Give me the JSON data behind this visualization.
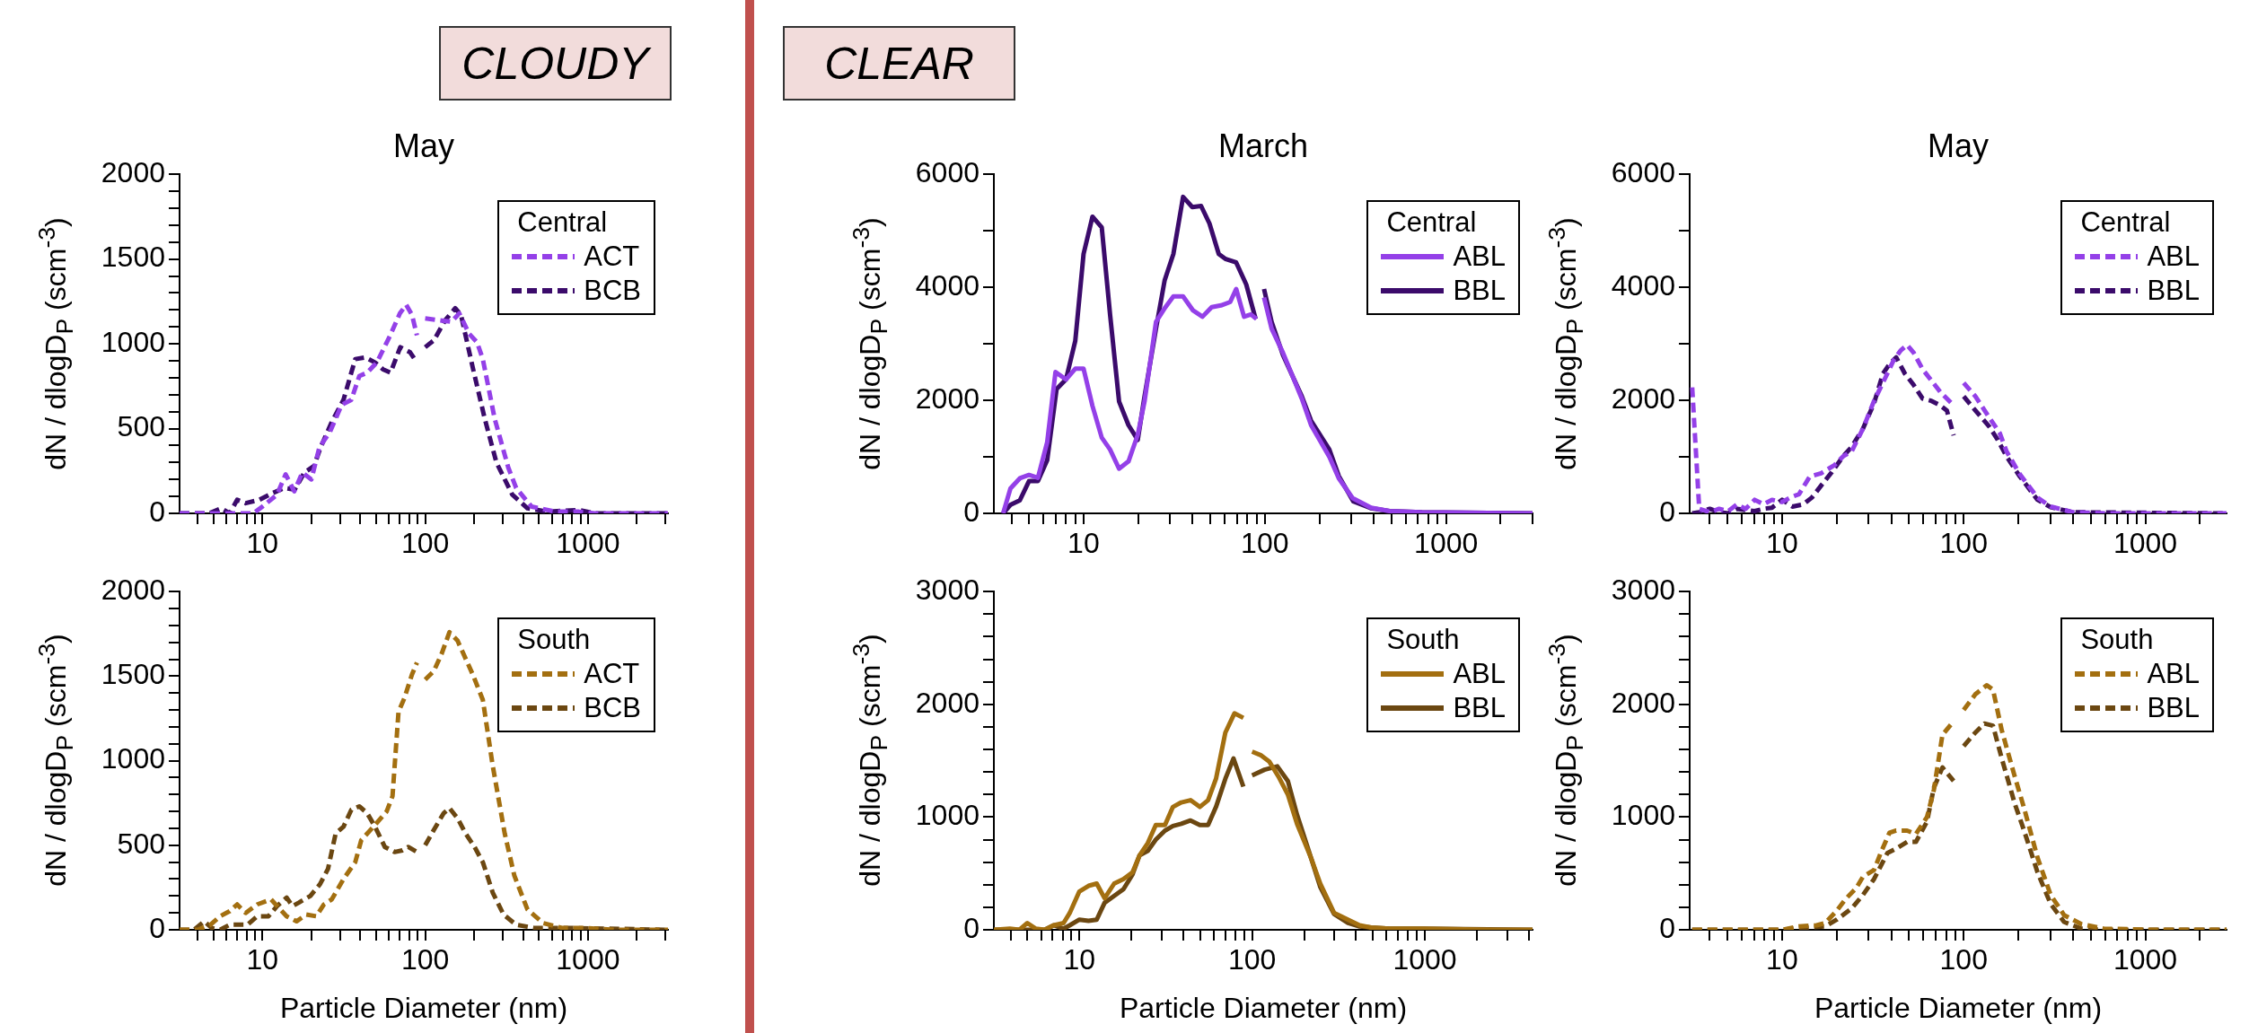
{
  "chart_data": [
    {
      "type": "line",
      "title": "May",
      "ylabel": "dN / dlogD$_{P}$ (scm$^{-3}$)",
      "legend_title": "Central",
      "annotations": [
        "CLOUDY"
      ],
      "log": "x",
      "grid": false,
      "legend": "top right",
      "line_style": "dashed",
      "xlim": [
        3.1,
        3100
      ],
      "ylim": [
        0,
        2000
      ],
      "xticks": [
        {
          "value": 4,
          "label": null
        },
        {
          "value": 5,
          "label": null
        },
        {
          "value": 6,
          "label": null
        },
        {
          "value": 7,
          "label": null
        },
        {
          "value": 8,
          "label": null
        },
        {
          "value": 9,
          "label": null
        },
        10,
        {
          "value": 20,
          "label": null
        },
        {
          "value": 30,
          "label": null
        },
        {
          "value": 40,
          "label": null
        },
        {
          "value": 50,
          "label": null
        },
        {
          "value": 60,
          "label": null
        },
        {
          "value": 70,
          "label": null
        },
        {
          "value": 80,
          "label": null
        },
        {
          "value": 90,
          "label": null
        },
        100,
        {
          "value": 200,
          "label": null
        },
        {
          "value": 300,
          "label": null
        },
        {
          "value": 400,
          "label": null
        },
        {
          "value": 500,
          "label": null
        },
        {
          "value": 600,
          "label": null
        },
        {
          "value": 700,
          "label": null
        },
        {
          "value": 800,
          "label": null
        },
        {
          "value": 900,
          "label": null
        },
        1000,
        {
          "value": 2000,
          "label": null
        },
        {
          "value": 3000,
          "label": null
        }
      ],
      "yticks": [
        0,
        {
          "value": 100,
          "label": null
        },
        {
          "value": 200,
          "label": null
        },
        {
          "value": 300,
          "label": null
        },
        {
          "value": 400,
          "label": null
        },
        500,
        {
          "value": 600,
          "label": null
        },
        {
          "value": 700,
          "label": null
        },
        {
          "value": 800,
          "label": null
        },
        {
          "value": 900,
          "label": null
        },
        1000,
        {
          "value": 1100,
          "label": null
        },
        {
          "value": 1200,
          "label": null
        },
        {
          "value": 1300,
          "label": null
        },
        {
          "value": 1400,
          "label": null
        },
        1500,
        {
          "value": 1600,
          "label": null
        },
        {
          "value": 1700,
          "label": null
        },
        {
          "value": 1800,
          "label": null
        },
        {
          "value": 1900,
          "label": null
        },
        2000
      ],
      "series": [
        {
          "name": "ACT",
          "color": "#9440e8",
          "x": [
            3.1,
            8.8,
            10,
            12.3,
            13.9,
            15.7,
            17.6,
            20,
            22.4,
            26,
            30.7,
            35.2,
            39.4,
            44,
            50.5,
            61,
            70,
            76.5,
            83,
            89,
            95,
            100,
            120,
            145,
            162,
            186,
            208,
            226,
            267,
            324,
            362,
            450,
            630,
            880,
            1100,
            1900,
            3100
          ],
          "values": [
            0,
            0,
            40,
            110,
            230,
            130,
            240,
            200,
            390,
            480,
            640,
            670,
            810,
            830,
            890,
            1050,
            1180,
            1230,
            1170,
            1050,
            null,
            1150,
            1140,
            1130,
            1180,
            1060,
            1010,
            910,
            560,
            270,
            150,
            40,
            10,
            10,
            0,
            0,
            0
          ]
        },
        {
          "name": "BCB",
          "color": "#3b0b6b",
          "x": [
            3.1,
            4.7,
            5.6,
            6.3,
            7,
            7.9,
            9.6,
            11.6,
            13.7,
            15.8,
            18.1,
            20.8,
            22.6,
            26.7,
            31.5,
            37.2,
            42.8,
            49.2,
            55,
            61.3,
            70.3,
            80.8,
            89,
            95,
            100,
            113,
            133,
            153,
            166,
            196,
            232,
            274,
            343,
            425,
            565,
            880,
            1100,
            3100
          ],
          "values": [
            0,
            0,
            30,
            0,
            80,
            60,
            80,
            120,
            150,
            140,
            240,
            280,
            380,
            540,
            670,
            910,
            920,
            890,
            850,
            830,
            980,
            950,
            890,
            null,
            980,
            1020,
            1140,
            1210,
            1170,
            860,
            560,
            300,
            110,
            30,
            10,
            20,
            0,
            0
          ]
        }
      ]
    },
    {
      "type": "line",
      "title": "March",
      "ylabel": "dN / dlogD$_{P}$ (scm$^{-3}$)",
      "legend_title": "Central",
      "annotations": [
        "CLEAR"
      ],
      "log": "x",
      "grid": false,
      "legend": "top right",
      "line_style": "solid",
      "xlim": [
        3.2,
        3000
      ],
      "ylim": [
        0,
        6000
      ],
      "xticks": [
        {
          "value": 4,
          "label": null
        },
        {
          "value": 5,
          "label": null
        },
        {
          "value": 6,
          "label": null
        },
        {
          "value": 7,
          "label": null
        },
        {
          "value": 8,
          "label": null
        },
        {
          "value": 9,
          "label": null
        },
        10,
        {
          "value": 20,
          "label": null
        },
        {
          "value": 30,
          "label": null
        },
        {
          "value": 40,
          "label": null
        },
        {
          "value": 50,
          "label": null
        },
        {
          "value": 60,
          "label": null
        },
        {
          "value": 70,
          "label": null
        },
        {
          "value": 80,
          "label": null
        },
        {
          "value": 90,
          "label": null
        },
        100,
        {
          "value": 200,
          "label": null
        },
        {
          "value": 300,
          "label": null
        },
        {
          "value": 400,
          "label": null
        },
        {
          "value": 500,
          "label": null
        },
        {
          "value": 600,
          "label": null
        },
        {
          "value": 700,
          "label": null
        },
        {
          "value": 800,
          "label": null
        },
        {
          "value": 900,
          "label": null
        },
        1000,
        {
          "value": 2000,
          "label": null
        },
        {
          "value": 3000,
          "label": null
        }
      ],
      "yticks": [
        0,
        {
          "value": 1000,
          "label": null
        },
        2000,
        {
          "value": 3000,
          "label": null
        },
        4000,
        {
          "value": 5000,
          "label": null
        },
        6000
      ],
      "series": [
        {
          "name": "ABL",
          "color": "#9440e8",
          "x": [
            3.6,
            3.95,
            4.45,
            5,
            5.6,
            6.3,
            7,
            8,
            9,
            10,
            11.2,
            12.6,
            14,
            15.7,
            17.7,
            19.9,
            21.7,
            25.1,
            28.3,
            31.3,
            35.4,
            40.2,
            45.3,
            50.9,
            57.3,
            64.4,
            69.5,
            76.8,
            83.8,
            90,
            95,
            99,
            109,
            126,
            160,
            180,
            227,
            256,
            305,
            386,
            488,
            736,
            3000
          ],
          "values": [
            0,
            440,
            620,
            680,
            630,
            1260,
            2500,
            2370,
            2560,
            2560,
            1900,
            1340,
            1130,
            790,
            920,
            1390,
            1980,
            3390,
            3650,
            3840,
            3840,
            3590,
            3480,
            3650,
            3680,
            3740,
            3970,
            3480,
            3520,
            3440,
            null,
            3820,
            3270,
            2840,
            2030,
            1560,
            1000,
            620,
            270,
            100,
            40,
            20,
            0
          ]
        },
        {
          "name": "BBL",
          "color": "#3b0b6b",
          "x": [
            3.6,
            3.95,
            4.45,
            5,
            5.6,
            6.3,
            7.1,
            8,
            9,
            10,
            11.2,
            12.6,
            14,
            15.7,
            17.7,
            19.9,
            21.7,
            25.1,
            28,
            31.3,
            35.4,
            39.8,
            44.5,
            49.5,
            55.7,
            60.9,
            69.5,
            79,
            89,
            95,
            99,
            109,
            126,
            160,
            180,
            227,
            256,
            308,
            386,
            488,
            736,
            3000
          ],
          "values": [
            0,
            150,
            230,
            570,
            570,
            940,
            2200,
            2370,
            3050,
            4590,
            5250,
            5060,
            3520,
            1980,
            1560,
            1300,
            2070,
            3270,
            4120,
            4590,
            5600,
            5420,
            5440,
            5130,
            4590,
            4500,
            4440,
            4050,
            3440,
            null,
            3970,
            3390,
            2800,
            2070,
            1640,
            1130,
            660,
            210,
            90,
            40,
            20,
            0
          ]
        }
      ]
    },
    {
      "type": "line",
      "title": "May",
      "ylabel": "dN / dlogD$_{P}$ (scm$^{-3}$)",
      "legend_title": "Central",
      "log": "x",
      "grid": false,
      "legend": "top right",
      "line_style": "dashed",
      "xlim": [
        3.1,
        2800
      ],
      "ylim": [
        0,
        6000
      ],
      "xticks": [
        {
          "value": 4,
          "label": null
        },
        {
          "value": 5,
          "label": null
        },
        {
          "value": 6,
          "label": null
        },
        {
          "value": 7,
          "label": null
        },
        {
          "value": 8,
          "label": null
        },
        {
          "value": 9,
          "label": null
        },
        10,
        {
          "value": 20,
          "label": null
        },
        {
          "value": 30,
          "label": null
        },
        {
          "value": 40,
          "label": null
        },
        {
          "value": 50,
          "label": null
        },
        {
          "value": 60,
          "label": null
        },
        {
          "value": 70,
          "label": null
        },
        {
          "value": 80,
          "label": null
        },
        {
          "value": 90,
          "label": null
        },
        100,
        {
          "value": 200,
          "label": null
        },
        {
          "value": 300,
          "label": null
        },
        {
          "value": 400,
          "label": null
        },
        {
          "value": 500,
          "label": null
        },
        {
          "value": 600,
          "label": null
        },
        {
          "value": 700,
          "label": null
        },
        {
          "value": 800,
          "label": null
        },
        {
          "value": 900,
          "label": null
        },
        1000,
        {
          "value": 2000,
          "label": null
        }
      ],
      "yticks": [
        0,
        {
          "value": 1000,
          "label": null
        },
        2000,
        {
          "value": 3000,
          "label": null
        },
        4000,
        {
          "value": 5000,
          "label": null
        },
        6000
      ],
      "series": [
        {
          "name": "ABL",
          "color": "#9440e8",
          "x": [
            3.2,
            3.5,
            4,
            4.5,
            5.05,
            5.65,
            6.3,
            7.06,
            7.9,
            8.8,
            10,
            11.1,
            12.4,
            14.2,
            16.4,
            19.4,
            21.7,
            24.2,
            27.9,
            32.1,
            36.9,
            41.3,
            44.9,
            48.8,
            53.1,
            59.4,
            66.4,
            74.3,
            88,
            95,
            100,
            116,
            138,
            158,
            172,
            204,
            255,
            301,
            399,
            625,
            2800
          ],
          "values": [
            2230,
            80,
            20,
            80,
            40,
            160,
            80,
            240,
            160,
            240,
            200,
            280,
            340,
            650,
            710,
            850,
            1010,
            1100,
            1500,
            1990,
            2390,
            2720,
            2880,
            2980,
            2840,
            2550,
            2350,
            2150,
            1910,
            null,
            2310,
            2070,
            1700,
            1420,
            1100,
            690,
            280,
            120,
            20,
            0,
            0
          ]
        },
        {
          "name": "BBL",
          "color": "#3b0b6b",
          "x": [
            3.2,
            3.5,
            4,
            4.5,
            5.05,
            5.65,
            6.3,
            7.06,
            7.9,
            8.8,
            10,
            11.4,
            13.1,
            14.6,
            16.4,
            18.8,
            21.7,
            24.2,
            27.9,
            32.1,
            35.9,
            39,
            42.5,
            47.5,
            53.1,
            59.4,
            66.4,
            74.3,
            80.8,
            88,
            95,
            100,
            116,
            138,
            154,
            172,
            204,
            255,
            301,
            399,
            2800
          ],
          "values": [
            0,
            20,
            80,
            20,
            0,
            80,
            60,
            40,
            80,
            100,
            240,
            120,
            160,
            280,
            490,
            730,
            1010,
            1180,
            1500,
            1950,
            2470,
            2640,
            2760,
            2470,
            2270,
            2030,
            1990,
            1910,
            1820,
            1380,
            null,
            2070,
            1820,
            1540,
            1300,
            1010,
            650,
            240,
            110,
            20,
            0
          ]
        }
      ]
    },
    {
      "type": "line",
      "xlabel": "Particle Diameter (nm)",
      "ylabel": "dN / dlogD$_{P}$ (scm$^{-3}$)",
      "legend_title": "South",
      "log": "x",
      "grid": false,
      "legend": "top right",
      "line_style": "dashed",
      "xlim": [
        3.1,
        3100
      ],
      "ylim": [
        0,
        2000
      ],
      "xticks": [
        {
          "value": 4,
          "label": null
        },
        {
          "value": 5,
          "label": null
        },
        {
          "value": 6,
          "label": null
        },
        {
          "value": 7,
          "label": null
        },
        {
          "value": 8,
          "label": null
        },
        {
          "value": 9,
          "label": null
        },
        10,
        {
          "value": 20,
          "label": null
        },
        {
          "value": 30,
          "label": null
        },
        {
          "value": 40,
          "label": null
        },
        {
          "value": 50,
          "label": null
        },
        {
          "value": 60,
          "label": null
        },
        {
          "value": 70,
          "label": null
        },
        {
          "value": 80,
          "label": null
        },
        {
          "value": 90,
          "label": null
        },
        100,
        {
          "value": 200,
          "label": null
        },
        {
          "value": 300,
          "label": null
        },
        {
          "value": 400,
          "label": null
        },
        {
          "value": 500,
          "label": null
        },
        {
          "value": 600,
          "label": null
        },
        {
          "value": 700,
          "label": null
        },
        {
          "value": 800,
          "label": null
        },
        {
          "value": 900,
          "label": null
        },
        1000,
        {
          "value": 2000,
          "label": null
        },
        {
          "value": 3000,
          "label": null
        }
      ],
      "yticks": [
        0,
        {
          "value": 100,
          "label": null
        },
        {
          "value": 200,
          "label": null
        },
        {
          "value": 300,
          "label": null
        },
        {
          "value": 400,
          "label": null
        },
        500,
        {
          "value": 600,
          "label": null
        },
        {
          "value": 700,
          "label": null
        },
        {
          "value": 800,
          "label": null
        },
        {
          "value": 900,
          "label": null
        },
        1000,
        {
          "value": 1100,
          "label": null
        },
        {
          "value": 1200,
          "label": null
        },
        {
          "value": 1300,
          "label": null
        },
        {
          "value": 1400,
          "label": null
        },
        1500,
        {
          "value": 1600,
          "label": null
        },
        {
          "value": 1700,
          "label": null
        },
        {
          "value": 1800,
          "label": null
        },
        {
          "value": 1900,
          "label": null
        },
        2000
      ],
      "series": [
        {
          "name": "ACT",
          "color": "#a36f10",
          "x": [
            3.1,
            4,
            4.8,
            5.5,
            6.3,
            7,
            7.9,
            9.3,
            11.3,
            12.6,
            14.1,
            16.2,
            18.6,
            21.4,
            23.9,
            26.7,
            31.5,
            37.2,
            40.5,
            49.2,
            58,
            63,
            68.6,
            74.5,
            83,
            89,
            95,
            100,
            113,
            126,
            141,
            158,
            196,
            226,
            260,
            308,
            353,
            425,
            530,
            700,
            980,
            1450,
            3100
          ],
          "values": [
            0,
            0,
            30,
            80,
            110,
            150,
            100,
            150,
            180,
            130,
            80,
            50,
            90,
            80,
            150,
            180,
            300,
            400,
            530,
            620,
            700,
            790,
            1290,
            1370,
            1510,
            1580,
            null,
            1480,
            1530,
            1630,
            1760,
            1710,
            1510,
            1360,
            970,
            570,
            320,
            120,
            40,
            10,
            10,
            0,
            0
          ]
        },
        {
          "name": "BCB",
          "color": "#6b4711",
          "x": [
            3.1,
            3.8,
            4.4,
            4.9,
            5.5,
            6.3,
            7,
            8.1,
            9.3,
            10.9,
            12.3,
            14.1,
            15.3,
            16.7,
            19.7,
            22.6,
            25.3,
            28.2,
            31.5,
            35.2,
            39.4,
            44,
            49.2,
            56.5,
            64.9,
            72.5,
            78.7,
            89,
            95,
            100,
            113,
            130,
            141,
            158,
            177,
            201,
            226,
            260,
            303,
            362,
            474,
            830,
            3100
          ],
          "values": [
            0,
            0,
            50,
            10,
            0,
            30,
            30,
            30,
            80,
            80,
            140,
            190,
            140,
            160,
            200,
            270,
            360,
            570,
            610,
            710,
            730,
            690,
            610,
            490,
            460,
            470,
            490,
            460,
            null,
            500,
            590,
            690,
            720,
            660,
            570,
            490,
            400,
            220,
            90,
            30,
            10,
            10,
            0
          ]
        }
      ]
    },
    {
      "type": "line",
      "xlabel": "Particle Diameter (nm)",
      "ylabel": "dN / dlogD$_{P}$ (scm$^{-3}$)",
      "legend_title": "South",
      "log": "x",
      "grid": false,
      "legend": "top right",
      "line_style": "solid",
      "xlim": [
        3.2,
        4200
      ],
      "ylim": [
        0,
        3000
      ],
      "xticks": [
        {
          "value": 4,
          "label": null
        },
        {
          "value": 5,
          "label": null
        },
        {
          "value": 6,
          "label": null
        },
        {
          "value": 7,
          "label": null
        },
        {
          "value": 8,
          "label": null
        },
        {
          "value": 9,
          "label": null
        },
        10,
        {
          "value": 20,
          "label": null
        },
        {
          "value": 30,
          "label": null
        },
        {
          "value": 40,
          "label": null
        },
        {
          "value": 50,
          "label": null
        },
        {
          "value": 60,
          "label": null
        },
        {
          "value": 70,
          "label": null
        },
        {
          "value": 80,
          "label": null
        },
        {
          "value": 90,
          "label": null
        },
        100,
        {
          "value": 200,
          "label": null
        },
        {
          "value": 300,
          "label": null
        },
        {
          "value": 400,
          "label": null
        },
        {
          "value": 500,
          "label": null
        },
        {
          "value": 600,
          "label": null
        },
        {
          "value": 700,
          "label": null
        },
        {
          "value": 800,
          "label": null
        },
        {
          "value": 900,
          "label": null
        },
        1000,
        {
          "value": 2000,
          "label": null
        },
        {
          "value": 3000,
          "label": null
        },
        {
          "value": 4000,
          "label": null
        }
      ],
      "yticks": [
        0,
        {
          "value": 200,
          "label": null
        },
        {
          "value": 400,
          "label": null
        },
        {
          "value": 600,
          "label": null
        },
        {
          "value": 800,
          "label": null
        },
        1000,
        {
          "value": 1200,
          "label": null
        },
        {
          "value": 1400,
          "label": null
        },
        {
          "value": 1600,
          "label": null
        },
        {
          "value": 1800,
          "label": null
        },
        2000,
        {
          "value": 2200,
          "label": null
        },
        {
          "value": 2400,
          "label": null
        },
        {
          "value": 2600,
          "label": null
        },
        {
          "value": 2800,
          "label": null
        },
        3000
      ],
      "series": [
        {
          "name": "ABL",
          "color": "#a36f10",
          "x": [
            3.2,
            3.96,
            4.5,
            5,
            5.6,
            6.3,
            7.1,
            8.1,
            8.8,
            10,
            11.3,
            12.6,
            14,
            15.9,
            18,
            20.3,
            22.3,
            24.9,
            27.7,
            31.3,
            34.8,
            38.9,
            44,
            49.8,
            55.6,
            61.8,
            70,
            79,
            89,
            95,
            100,
            112,
            126,
            142,
            161,
            182,
            219,
            248,
            298,
            359,
            419,
            489,
            626,
            964,
            2430,
            4200
          ],
          "values": [
            0,
            10,
            0,
            60,
            10,
            0,
            40,
            60,
            150,
            340,
            390,
            410,
            280,
            410,
            450,
            510,
            660,
            770,
            930,
            930,
            1090,
            1130,
            1150,
            1090,
            1150,
            1340,
            1750,
            1920,
            1880,
            null,
            1580,
            1550,
            1490,
            1360,
            1200,
            940,
            640,
            410,
            150,
            90,
            40,
            20,
            10,
            10,
            0,
            0
          ]
        },
        {
          "name": "BBL",
          "color": "#6b4711",
          "x": [
            3.2,
            4.2,
            6.3,
            7.1,
            8.1,
            8.8,
            10,
            11.3,
            12.6,
            14,
            15.9,
            18,
            20.3,
            22.3,
            24.9,
            27.7,
            31.3,
            34.8,
            38.9,
            44,
            49.8,
            55.6,
            61.8,
            70,
            78,
            89,
            95,
            100,
            118,
            140,
            161,
            182,
            219,
            248,
            298,
            359,
            419,
            489,
            626,
            964,
            4200
          ],
          "values": [
            0,
            0,
            0,
            40,
            10,
            40,
            90,
            80,
            90,
            240,
            300,
            360,
            490,
            660,
            700,
            800,
            880,
            920,
            940,
            970,
            930,
            930,
            1090,
            1340,
            1520,
            1270,
            null,
            1370,
            1420,
            1450,
            1320,
            1020,
            640,
            380,
            140,
            60,
            30,
            20,
            10,
            10,
            0
          ]
        }
      ]
    },
    {
      "type": "line",
      "xlabel": "Particle Diameter (nm)",
      "ylabel": "dN / dlogD$_{P}$ (scm$^{-3}$)",
      "legend_title": "South",
      "log": "x",
      "grid": false,
      "legend": "top right",
      "line_style": "dashed",
      "xlim": [
        3.1,
        2800
      ],
      "ylim": [
        0,
        3000
      ],
      "xticks": [
        {
          "value": 4,
          "label": null
        },
        {
          "value": 5,
          "label": null
        },
        {
          "value": 6,
          "label": null
        },
        {
          "value": 7,
          "label": null
        },
        {
          "value": 8,
          "label": null
        },
        {
          "value": 9,
          "label": null
        },
        10,
        {
          "value": 20,
          "label": null
        },
        {
          "value": 30,
          "label": null
        },
        {
          "value": 40,
          "label": null
        },
        {
          "value": 50,
          "label": null
        },
        {
          "value": 60,
          "label": null
        },
        {
          "value": 70,
          "label": null
        },
        {
          "value": 80,
          "label": null
        },
        {
          "value": 90,
          "label": null
        },
        100,
        {
          "value": 200,
          "label": null
        },
        {
          "value": 300,
          "label": null
        },
        {
          "value": 400,
          "label": null
        },
        {
          "value": 500,
          "label": null
        },
        {
          "value": 600,
          "label": null
        },
        {
          "value": 700,
          "label": null
        },
        {
          "value": 800,
          "label": null
        },
        {
          "value": 900,
          "label": null
        },
        1000,
        {
          "value": 2000,
          "label": null
        }
      ],
      "yticks": [
        0,
        {
          "value": 200,
          "label": null
        },
        {
          "value": 400,
          "label": null
        },
        {
          "value": 600,
          "label": null
        },
        {
          "value": 800,
          "label": null
        },
        1000,
        {
          "value": 1200,
          "label": null
        },
        {
          "value": 1400,
          "label": null
        },
        {
          "value": 1600,
          "label": null
        },
        {
          "value": 1800,
          "label": null
        },
        2000,
        {
          "value": 2200,
          "label": null
        },
        {
          "value": 2400,
          "label": null
        },
        {
          "value": 2600,
          "label": null
        },
        {
          "value": 2800,
          "label": null
        },
        3000
      ],
      "series": [
        {
          "name": "ABL",
          "color": "#a36f10",
          "x": [
            3.2,
            10,
            12.4,
            15.5,
            17.3,
            20,
            22.3,
            25.6,
            27.9,
            32.1,
            34.9,
            39,
            42.5,
            48.8,
            54.6,
            62.8,
            68.5,
            76.4,
            88,
            95,
            100,
            116,
            134,
            145,
            162,
            191,
            215,
            255,
            301,
            357,
            445,
            590,
            1100,
            2800
          ],
          "values": [
            0,
            0,
            30,
            40,
            60,
            170,
            270,
            370,
            470,
            530,
            680,
            860,
            880,
            880,
            850,
            1000,
            1240,
            1730,
            1850,
            null,
            1950,
            2090,
            2170,
            2130,
            1770,
            1360,
            1080,
            640,
            310,
            130,
            50,
            10,
            0,
            0
          ]
        },
        {
          "name": "BBL",
          "color": "#6b4711",
          "x": [
            3.2,
            10,
            13.8,
            17.3,
            20,
            24.2,
            27.9,
            32.1,
            38,
            42.5,
            48.8,
            54.6,
            62.8,
            68.5,
            76.4,
            88,
            95,
            100,
            116,
            130,
            145,
            162,
            191,
            215,
            255,
            301,
            357,
            445,
            590,
            2800
          ],
          "values": [
            0,
            0,
            20,
            30,
            90,
            190,
            310,
            450,
            680,
            720,
            780,
            780,
            960,
            1260,
            1440,
            1320,
            null,
            1630,
            1750,
            1830,
            1810,
            1520,
            1120,
            880,
            510,
            230,
            70,
            10,
            0,
            0
          ]
        }
      ]
    }
  ]
}
